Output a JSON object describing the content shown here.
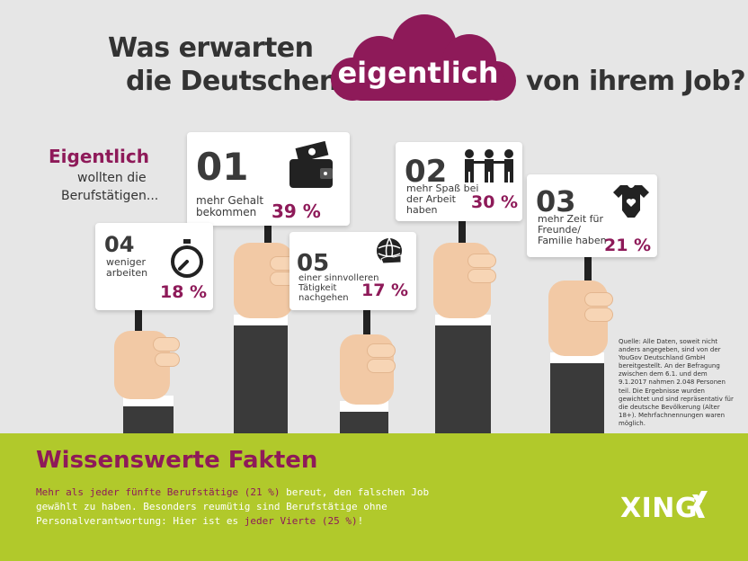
{
  "title": {
    "line1": "Was erwarten",
    "line2": "die Deutschen",
    "highlight": "eigentlich",
    "line3": "von ihrem Job?"
  },
  "intro": {
    "emph": "Eigentlich",
    "line2": "wollten die",
    "line3": "Berufstätigen..."
  },
  "signs": [
    {
      "num": "01",
      "desc": "mehr Gehalt\nbekommen",
      "pct": "39 %",
      "icon": "wallet-icon"
    },
    {
      "num": "02",
      "desc": "mehr Spaß bei\nder Arbeit\nhaben",
      "pct": "30 %",
      "icon": "team-icon"
    },
    {
      "num": "03",
      "desc": "mehr Zeit für\nFreunde/\nFamilie haben",
      "pct": "21 %",
      "icon": "baby-onesie-icon"
    },
    {
      "num": "04",
      "desc": "weniger\narbeiten",
      "pct": "18 %",
      "icon": "stopwatch-icon"
    },
    {
      "num": "05",
      "desc": "einer sinnvolleren\nTätigkeit\nnachgehen",
      "pct": "17 %",
      "icon": "globe-hand-icon"
    }
  ],
  "source": "Quelle: Alle Daten, soweit nicht anders angegeben, sind von der YouGov Deutschland GmbH bereitgestellt. An der Befragung zwischen dem 6.1. und dem 9.1.2017 nahmen 2.048 Personen teil. Die Ergebnisse wurden gewichtet und sind repräsentativ für die deutsche Bevölkerung (Alter 18+). Mehrfachnennungen waren möglich.",
  "facts": {
    "title": "Wissenswerte Fakten",
    "p1_a": "Mehr als ",
    "p1_b": "jeder fünfte Berufstätige (21 %)",
    "p1_c": " bereut, den falschen Job gewählt zu haben. Besonders reumütig sind Berufstätige ohne Personalverantwortung: Hier ist es ",
    "p1_d": "jeder Vierte (25 %)",
    "p1_e": "!"
  },
  "brand": "XING",
  "colors": {
    "accent": "#8e1a59",
    "green": "#b1c92b",
    "background": "#e6e6e6"
  }
}
